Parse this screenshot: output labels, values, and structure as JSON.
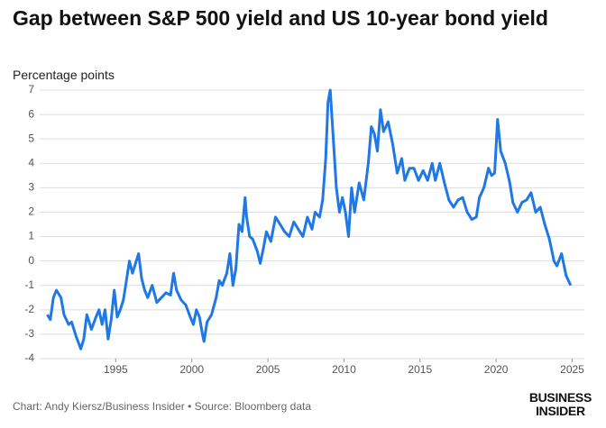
{
  "chart_data": {
    "type": "line",
    "title": "Gap between S&P 500 yield and US 10-year bond yield",
    "y_label": "Percentage points",
    "source": "Chart: Andy Kiersz/Business Insider • Source: Bloomberg data",
    "logo": [
      "BUSINESS",
      "INSIDER"
    ],
    "xlim": [
      1990,
      2025.8
    ],
    "xticks": [
      1995,
      2000,
      2005,
      2010,
      2015,
      2020,
      2025
    ],
    "ylim": [
      -4,
      7
    ],
    "yticks": [
      -4,
      -3,
      -2,
      -1,
      0,
      1,
      2,
      3,
      4,
      5,
      6,
      7
    ],
    "grid": true,
    "x": [
      1990.5,
      1990.7,
      1990.9,
      1991.1,
      1991.4,
      1991.6,
      1991.9,
      1992.1,
      1992.4,
      1992.7,
      1992.9,
      1993.1,
      1993.4,
      1993.7,
      1993.9,
      1994.1,
      1994.3,
      1994.5,
      1994.7,
      1994.9,
      1995.1,
      1995.3,
      1995.5,
      1995.7,
      1995.9,
      1996.1,
      1996.3,
      1996.5,
      1996.7,
      1996.9,
      1997.1,
      1997.4,
      1997.7,
      1998.0,
      1998.3,
      1998.6,
      1998.8,
      1999.0,
      1999.3,
      1999.6,
      1999.9,
      2000.1,
      2000.3,
      2000.5,
      2000.7,
      2000.8,
      2001.0,
      2001.3,
      2001.6,
      2001.8,
      2002.0,
      2002.3,
      2002.5,
      2002.7,
      2002.9,
      2003.1,
      2003.3,
      2003.5,
      2003.6,
      2003.8,
      2004.0,
      2004.3,
      2004.5,
      2004.7,
      2004.9,
      2005.2,
      2005.5,
      2005.8,
      2006.1,
      2006.4,
      2006.7,
      2007.0,
      2007.3,
      2007.6,
      2007.9,
      2008.1,
      2008.4,
      2008.6,
      2008.8,
      2008.95,
      2009.1,
      2009.3,
      2009.5,
      2009.7,
      2009.9,
      2010.1,
      2010.3,
      2010.5,
      2010.7,
      2011.0,
      2011.3,
      2011.6,
      2011.8,
      2012.0,
      2012.2,
      2012.4,
      2012.6,
      2012.9,
      2013.2,
      2013.5,
      2013.8,
      2014.0,
      2014.3,
      2014.6,
      2014.9,
      2015.2,
      2015.5,
      2015.8,
      2016.0,
      2016.3,
      2016.6,
      2016.9,
      2017.2,
      2017.5,
      2017.8,
      2018.1,
      2018.4,
      2018.7,
      2018.9,
      2019.2,
      2019.5,
      2019.7,
      2019.9,
      2020.1,
      2020.3,
      2020.6,
      2020.9,
      2021.1,
      2021.4,
      2021.7,
      2022.0,
      2022.3,
      2022.6,
      2022.9,
      2023.2,
      2023.5,
      2023.8,
      2024.0,
      2024.3,
      2024.6,
      2024.9
    ],
    "series": [
      {
        "name": "Gap",
        "color": "#1f78e6",
        "values": [
          -2.2,
          -2.4,
          -1.5,
          -1.2,
          -1.5,
          -2.2,
          -2.6,
          -2.5,
          -3.1,
          -3.6,
          -3.2,
          -2.2,
          -2.8,
          -2.3,
          -2.0,
          -2.6,
          -2.0,
          -3.2,
          -2.4,
          -1.2,
          -2.3,
          -2.0,
          -1.6,
          -0.8,
          0.0,
          -0.5,
          -0.1,
          0.3,
          -0.7,
          -1.2,
          -1.5,
          -1.0,
          -1.7,
          -1.5,
          -1.3,
          -1.4,
          -0.5,
          -1.2,
          -1.6,
          -1.8,
          -2.3,
          -2.6,
          -2.0,
          -2.3,
          -3.0,
          -3.3,
          -2.5,
          -2.2,
          -1.5,
          -0.8,
          -1.0,
          -0.5,
          0.3,
          -1.0,
          -0.3,
          1.5,
          1.2,
          2.6,
          1.8,
          1.0,
          0.9,
          0.4,
          -0.1,
          0.5,
          1.2,
          0.8,
          1.8,
          1.5,
          1.2,
          1.0,
          1.6,
          1.3,
          1.0,
          1.8,
          1.3,
          2.0,
          1.8,
          2.5,
          4.2,
          6.5,
          7.0,
          5.0,
          3.0,
          2.0,
          2.6,
          2.0,
          1.0,
          3.0,
          2.0,
          3.2,
          2.5,
          4.0,
          5.5,
          5.2,
          4.5,
          6.2,
          5.3,
          5.7,
          4.8,
          3.6,
          4.2,
          3.3,
          3.8,
          3.8,
          3.3,
          3.7,
          3.3,
          4.0,
          3.3,
          4.0,
          3.2,
          2.5,
          2.2,
          2.5,
          2.6,
          2.0,
          1.7,
          1.8,
          2.6,
          3.0,
          3.8,
          3.5,
          3.6,
          5.8,
          4.5,
          4.0,
          3.2,
          2.4,
          2.0,
          2.4,
          2.5,
          2.8,
          2.0,
          2.2,
          1.5,
          0.9,
          0.0,
          -0.2,
          0.3,
          -0.6,
          -1.0
        ]
      }
    ]
  }
}
